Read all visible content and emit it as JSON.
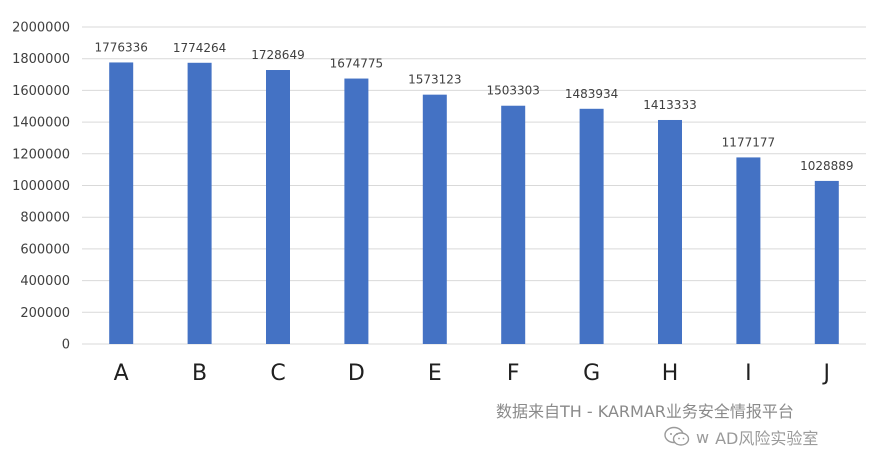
{
  "chart_data": {
    "type": "bar",
    "categories": [
      "A",
      "B",
      "C",
      "D",
      "E",
      "F",
      "G",
      "H",
      "I",
      "J"
    ],
    "values": [
      1776336,
      1774264,
      1728649,
      1674775,
      1573123,
      1503303,
      1483934,
      1413333,
      1177177,
      1028889
    ],
    "data_labels": [
      "1776336",
      "1774264",
      "1728649",
      "1674775",
      "1573123",
      "1503303",
      "1483934",
      "1413333",
      "1177177",
      "1028889"
    ],
    "title": "",
    "xlabel": "",
    "ylabel": "",
    "ylim": [
      0,
      2000000
    ],
    "yticks": [
      0,
      200000,
      400000,
      600000,
      800000,
      1000000,
      1200000,
      1400000,
      1600000,
      1800000,
      2000000
    ],
    "ytick_labels": [
      "0",
      "200000",
      "400000",
      "600000",
      "800000",
      "1000000",
      "1200000",
      "1400000",
      "1600000",
      "1800000",
      "2000000"
    ],
    "grid": true,
    "legend": "none",
    "bar_color": "#4472C4",
    "grid_color": "#d9d9d9"
  },
  "source_text": "数据来自TH - KARMAR业务安全情报平台",
  "watermark": {
    "icon": "wechat-icon",
    "text": "AD风险实验室",
    "prefix": "w"
  }
}
